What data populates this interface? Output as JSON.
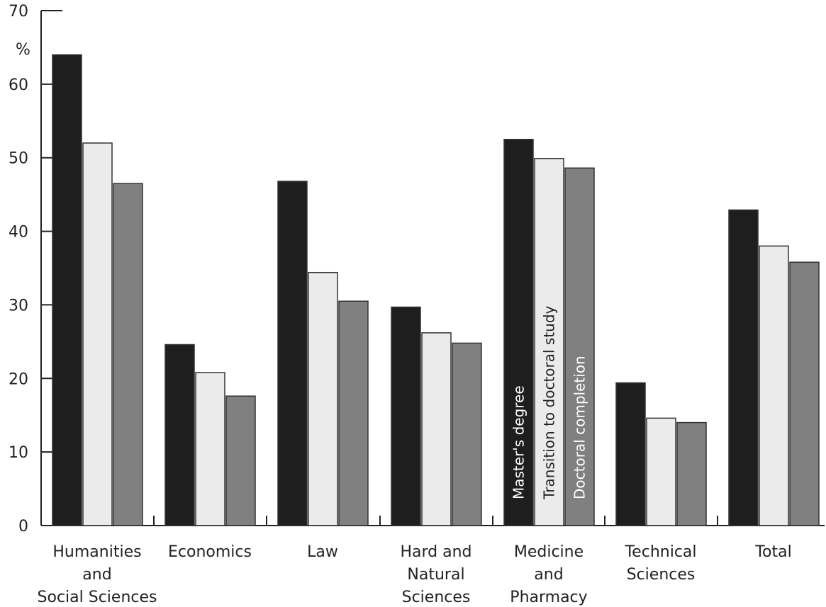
{
  "chart_data": {
    "type": "bar",
    "ylabel": "%",
    "ylim": [
      0,
      70
    ],
    "yticks": [
      0,
      10,
      20,
      30,
      40,
      50,
      60,
      70
    ],
    "categories": [
      [
        "Humanities",
        "and",
        "Social Sciences"
      ],
      [
        "Economics"
      ],
      [
        "Law"
      ],
      [
        "Hard and",
        "Natural",
        "Sciences"
      ],
      [
        "Medicine",
        "and",
        "Pharmacy"
      ],
      [
        "Technical",
        "Sciences"
      ],
      [
        "Total"
      ]
    ],
    "series": [
      {
        "name": "Master's degree",
        "color": "#1e1e1e",
        "values": [
          64,
          24.6,
          46.8,
          29.7,
          52.5,
          19.4,
          42.9
        ]
      },
      {
        "name": "Transition to doctoral study",
        "color": "#ebebeb",
        "values": [
          52,
          20.8,
          34.4,
          26.2,
          49.9,
          14.6,
          38
        ]
      },
      {
        "name": "Doctoral completion",
        "color": "#808080",
        "values": [
          46.5,
          17.6,
          30.5,
          24.8,
          48.6,
          14,
          35.8
        ]
      }
    ],
    "legend_placement": "vertical labels inside Medicine and Pharmacy bars",
    "grid": false
  }
}
